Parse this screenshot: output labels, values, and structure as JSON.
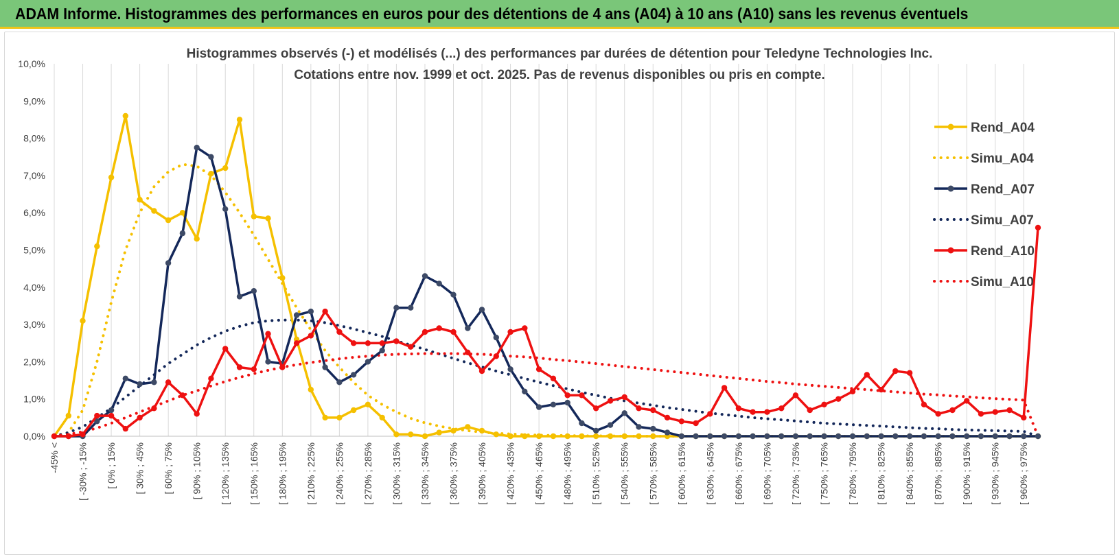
{
  "header": {
    "title": "ADAM Informe. Histogrammes des performances en euros pour des détentions de 4 ans (A04) à 10 ans (A10) sans les revenus éventuels"
  },
  "chart_data": {
    "type": "line",
    "title_line1": "Histogrammes observés (-) et modélisés (...) des performances par durées de détention pour Teledyne Technologies Inc.",
    "title_line2": "Cotations entre nov. 1999 et oct. 2025. Pas de revenus disponibles ou pris en compte.",
    "xlabel": "",
    "ylabel": "",
    "ylim": [
      0,
      10
    ],
    "y_ticks": [
      "0,0%",
      "1,0%",
      "2,0%",
      "3,0%",
      "4,0%",
      "5,0%",
      "6,0%",
      "7,0%",
      "8,0%",
      "9,0%",
      "10,0%"
    ],
    "grid": "vertical",
    "legend_position": "right",
    "x_tick_labels": [
      "-45% <",
      "[ -30% ; -15%",
      "[ 0% ; 15%",
      "[ 30% ; 45%",
      "[ 60% ; 75%",
      "[ 90% ; 105%",
      "[ 120% ; 135%",
      "[ 150% ; 165%",
      "[ 180% ; 195%",
      "[ 210% ; 225%",
      "[ 240% ; 255%",
      "[ 270% ; 285%",
      "[ 300% ; 315%",
      "[ 330% ; 345%",
      "[ 360% ; 375%",
      "[ 390% ; 405%",
      "[ 420% ; 435%",
      "[ 450% ; 465%",
      "[ 480% ; 495%",
      "[ 510% ; 525%",
      "[ 540% ; 555%",
      "[ 570% ; 585%",
      "[ 600% ; 615%",
      "[ 630% ; 645%",
      "[ 660% ; 675%",
      "[ 690% ; 705%",
      "[ 720% ; 735%",
      "[ 750% ; 765%",
      "[ 780% ; 795%",
      "[ 810% ; 825%",
      "[ 840% ; 855%",
      "[ 870% ; 885%",
      "[ 900% ; 915%",
      "[ 930% ; 945%",
      "[ 960% ; 975%"
    ],
    "n_points": 70,
    "series": [
      {
        "name": "Rend_A04",
        "style": "solid",
        "color": "#f5c000",
        "values": [
          0.0,
          0.55,
          3.1,
          5.1,
          6.95,
          8.6,
          6.35,
          6.05,
          5.8,
          6.0,
          5.3,
          7.05,
          7.2,
          8.5,
          5.9,
          5.85,
          4.25,
          2.6,
          1.25,
          0.5,
          0.5,
          0.7,
          0.85,
          0.5,
          0.05,
          0.05,
          0.0,
          0.1,
          0.15,
          0.25,
          0.15,
          0.05,
          0.0,
          0.0,
          0.0,
          0.0,
          0.0,
          0.0,
          0.0,
          0.0,
          0.0,
          0.0,
          0.0,
          0.0,
          0.0,
          0.0,
          0.0,
          0.0,
          0.0,
          0.0,
          0.0,
          0.0,
          0.0,
          0.0,
          0.0,
          0.0,
          0.0,
          0.0,
          0.0,
          0.0,
          0.0,
          0.0,
          0.0,
          0.0,
          0.0,
          0.0,
          0.0,
          0.0,
          0.0,
          0.0
        ]
      },
      {
        "name": "Simu_A04",
        "style": "dotted",
        "color": "#f5c000",
        "values": [
          0.0,
          0.1,
          0.7,
          2.0,
          3.6,
          5.0,
          6.0,
          6.7,
          7.1,
          7.3,
          7.25,
          7.0,
          6.55,
          6.0,
          5.4,
          4.75,
          4.1,
          3.45,
          2.85,
          2.3,
          1.85,
          1.45,
          1.1,
          0.85,
          0.65,
          0.48,
          0.36,
          0.27,
          0.2,
          0.15,
          0.11,
          0.08,
          0.06,
          0.04,
          0.03,
          0.02,
          0.02,
          0.01,
          0.01,
          0.01,
          0.0,
          0.0,
          0.0,
          0.0,
          0.0,
          0.0,
          0.0,
          0.0,
          0.0,
          0.0,
          0.0,
          0.0,
          0.0,
          0.0,
          0.0,
          0.0,
          0.0,
          0.0,
          0.0,
          0.0,
          0.0,
          0.0,
          0.0,
          0.0,
          0.0,
          0.0,
          0.0,
          0.0,
          0.0,
          0.0
        ]
      },
      {
        "name": "Rend_A07",
        "style": "solid",
        "color": "#14285a",
        "values": [
          0.0,
          0.0,
          0.0,
          0.4,
          0.7,
          1.55,
          1.4,
          1.45,
          4.65,
          5.45,
          7.75,
          7.5,
          6.1,
          3.75,
          3.9,
          2.0,
          1.95,
          3.25,
          3.35,
          1.85,
          1.45,
          1.65,
          2.0,
          2.3,
          3.45,
          3.45,
          4.3,
          4.1,
          3.8,
          2.9,
          3.4,
          2.65,
          1.8,
          1.2,
          0.78,
          0.85,
          0.9,
          0.35,
          0.15,
          0.3,
          0.62,
          0.25,
          0.2,
          0.1,
          0.0,
          0.0,
          0.0,
          0.0,
          0.0,
          0.0,
          0.0,
          0.0,
          0.0,
          0.0,
          0.0,
          0.0,
          0.0,
          0.0,
          0.0,
          0.0,
          0.0,
          0.0,
          0.0,
          0.0,
          0.0,
          0.0,
          0.0,
          0.0,
          0.0,
          0.0
        ]
      },
      {
        "name": "Simu_A07",
        "style": "dotted",
        "color": "#14285a",
        "values": [
          0.0,
          0.1,
          0.25,
          0.5,
          0.75,
          1.05,
          1.35,
          1.65,
          1.95,
          2.2,
          2.45,
          2.65,
          2.82,
          2.95,
          3.05,
          3.1,
          3.12,
          3.12,
          3.1,
          3.05,
          2.97,
          2.88,
          2.78,
          2.68,
          2.56,
          2.45,
          2.33,
          2.21,
          2.09,
          1.97,
          1.86,
          1.75,
          1.65,
          1.55,
          1.45,
          1.36,
          1.27,
          1.18,
          1.1,
          1.02,
          0.95,
          0.89,
          0.83,
          0.77,
          0.72,
          0.67,
          0.62,
          0.58,
          0.54,
          0.5,
          0.47,
          0.44,
          0.41,
          0.38,
          0.35,
          0.33,
          0.31,
          0.29,
          0.27,
          0.25,
          0.23,
          0.21,
          0.2,
          0.18,
          0.17,
          0.16,
          0.15,
          0.14,
          0.13,
          0.0
        ]
      },
      {
        "name": "Rend_A10",
        "style": "solid",
        "color": "#ee1111",
        "values": [
          0.0,
          0.0,
          0.05,
          0.55,
          0.55,
          0.2,
          0.5,
          0.75,
          1.45,
          1.1,
          0.6,
          1.55,
          2.35,
          1.85,
          1.8,
          2.75,
          1.85,
          2.5,
          2.7,
          3.35,
          2.8,
          2.5,
          2.5,
          2.5,
          2.55,
          2.4,
          2.8,
          2.9,
          2.8,
          2.25,
          1.75,
          2.15,
          2.8,
          2.9,
          1.8,
          1.55,
          1.1,
          1.1,
          0.75,
          0.95,
          1.05,
          0.75,
          0.7,
          0.5,
          0.4,
          0.35,
          0.6,
          1.3,
          0.75,
          0.65,
          0.65,
          0.75,
          1.1,
          0.7,
          0.85,
          1.0,
          1.2,
          1.65,
          1.25,
          1.75,
          1.7,
          0.85,
          0.6,
          0.7,
          0.95,
          0.6,
          0.65,
          0.7,
          0.5,
          5.6
        ]
      },
      {
        "name": "Simu_A10",
        "style": "dotted",
        "color": "#ee1111",
        "values": [
          0.0,
          0.05,
          0.12,
          0.22,
          0.35,
          0.5,
          0.65,
          0.8,
          0.95,
          1.1,
          1.22,
          1.35,
          1.47,
          1.58,
          1.68,
          1.77,
          1.85,
          1.92,
          1.98,
          2.03,
          2.08,
          2.12,
          2.15,
          2.18,
          2.2,
          2.21,
          2.22,
          2.22,
          2.22,
          2.21,
          2.2,
          2.18,
          2.15,
          2.13,
          2.1,
          2.06,
          2.03,
          1.99,
          1.95,
          1.91,
          1.87,
          1.83,
          1.79,
          1.75,
          1.71,
          1.67,
          1.63,
          1.59,
          1.55,
          1.51,
          1.47,
          1.44,
          1.4,
          1.37,
          1.34,
          1.31,
          1.28,
          1.25,
          1.22,
          1.19,
          1.16,
          1.13,
          1.11,
          1.08,
          1.06,
          1.03,
          1.01,
          0.99,
          0.97,
          0.0
        ]
      }
    ]
  }
}
